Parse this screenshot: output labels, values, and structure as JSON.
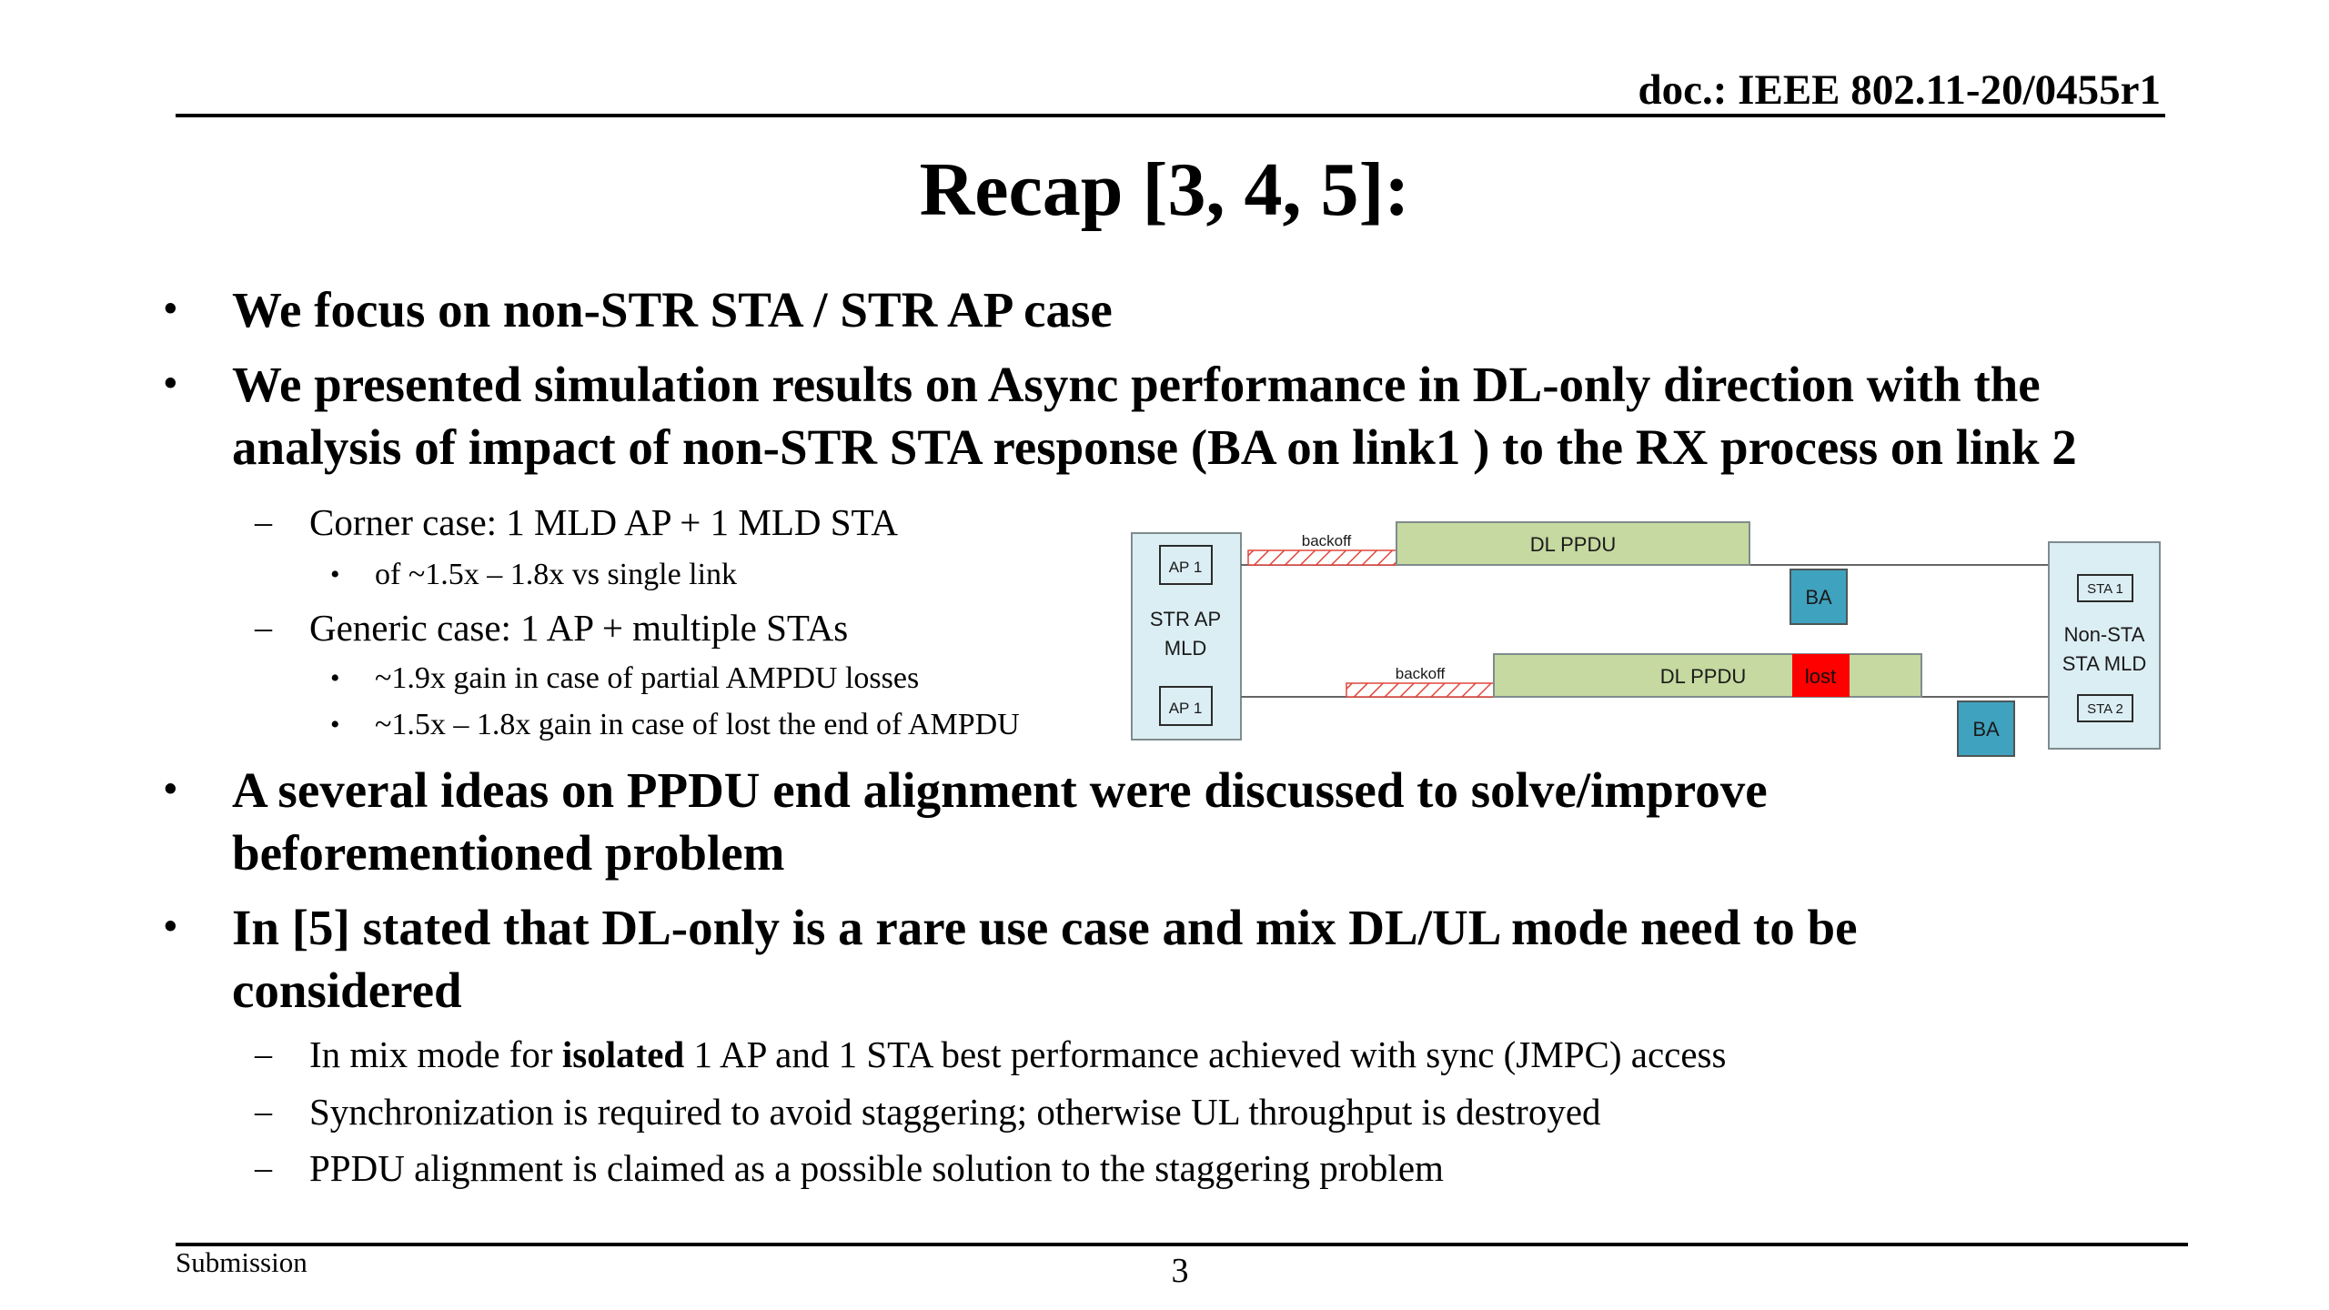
{
  "header": {
    "doc_id": "doc.: IEEE 802.11-20/0455r1"
  },
  "slide": {
    "title": "Recap [3, 4, 5]:",
    "bullets": {
      "b1": "We focus on non-STR STA / STR AP case",
      "b2_line1": "We presented simulation results on Async performance in DL-only direction with the",
      "b2_line2": "analysis of impact of non-STR STA response (BA on link1 ) to the RX process on link 2",
      "b2_sub1": "Corner case: 1 MLD AP + 1 MLD STA",
      "b2_sub1_a": "of ~1.5x – 1.8x vs single link",
      "b2_sub2": "Generic case: 1 AP + multiple STAs",
      "b2_sub2_a": "~1.9x gain in case of partial AMPDU losses",
      "b2_sub2_b": "~1.5x – 1.8x gain in case of lost the end of AMPDU",
      "b3_line1": "A several ideas on PPDU end alignment were discussed to solve/improve",
      "b3_line2": "beforementioned problem",
      "b4_line1": "In [5] stated that DL-only is a rare use case and mix DL/UL mode need to be",
      "b4_line2": "considered",
      "b4_sub1_pre": "In mix mode for ",
      "b4_sub1_bold": "isolated",
      "b4_sub1_post": " 1 AP and 1 STA best performance achieved with sync (JMPC) access",
      "b4_sub2": "Synchronization is required to avoid staggering; otherwise UL throughput is destroyed",
      "b4_sub3": "PPDU alignment is claimed as a possible solution to the staggering problem"
    }
  },
  "diagram": {
    "ap_box_label_1": "STR AP",
    "ap_box_label_2": "MLD",
    "ap1_top": "AP 1",
    "ap1_bottom": "AP 1",
    "sta_box_label_1": "Non-STA",
    "sta_box_label_2": "STA MLD",
    "sta1": "STA 1",
    "sta2": "STA 2",
    "backoff_top": "backoff",
    "backoff_bottom": "backoff",
    "dl_ppdu_top": "DL PPDU",
    "dl_ppdu_bottom": "DL PPDU",
    "lost": "lost",
    "ba_top": "BA",
    "ba_bottom": "BA",
    "colors": {
      "box_fill": "#dbeef4",
      "ppdu": "#c5d9a0",
      "ba": "#3fa2bf",
      "lost": "#ff0000",
      "hatch": "#e0473d"
    }
  },
  "footer": {
    "left": "Submission",
    "page": "3"
  }
}
